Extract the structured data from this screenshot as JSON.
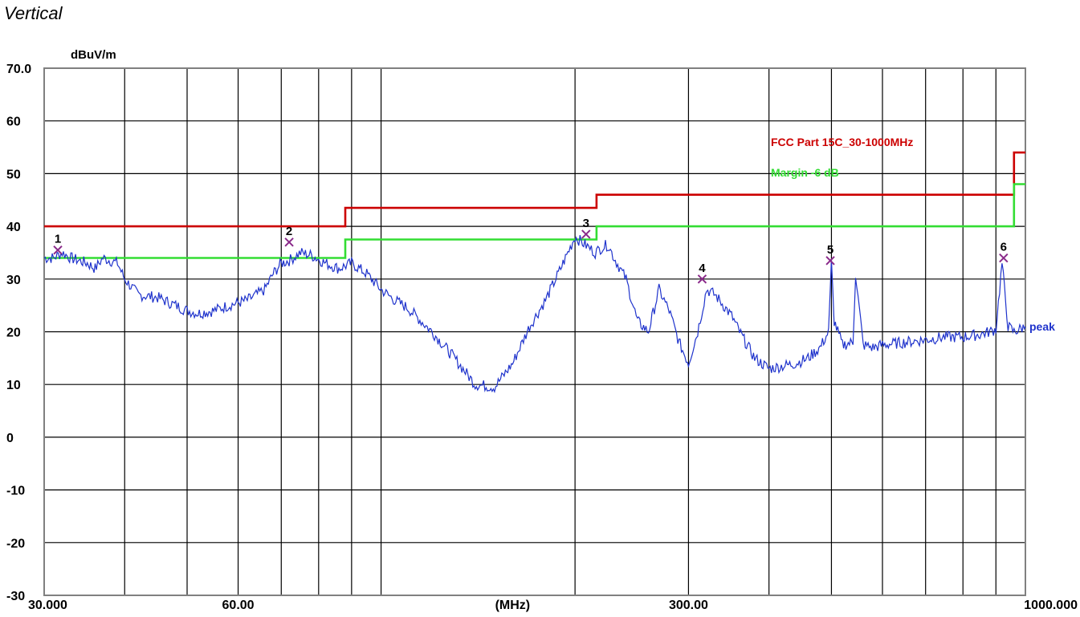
{
  "title": "Vertical",
  "chart_data": {
    "type": "line",
    "y_unit": "dBuV/m",
    "x_unit": "(MHz)",
    "x_scale": "log",
    "xlim": [
      30,
      1000
    ],
    "ylim": [
      -30,
      70
    ],
    "y_ticks": [
      "70.0",
      "60",
      "50",
      "40",
      "30",
      "20",
      "10",
      "0",
      "-10",
      "-20",
      "-30"
    ],
    "x_ticks": [
      "30.000",
      "60.00",
      "(MHz)",
      "300.00",
      "1000.000"
    ],
    "grid": true,
    "series": [
      {
        "name": "FCC Part 15C_30-1000MHz",
        "color": "#cc0000",
        "x": [
          30,
          88,
          88,
          216,
          216,
          960,
          960,
          1000
        ],
        "y": [
          40,
          40,
          43.5,
          43.5,
          46,
          46,
          54,
          54
        ]
      },
      {
        "name": "Margin -6 dB",
        "color": "#33dd33",
        "x": [
          30,
          88,
          88,
          216,
          216,
          960,
          960,
          1000
        ],
        "y": [
          34,
          34,
          37.5,
          37.5,
          40,
          40,
          48,
          48
        ]
      },
      {
        "name": "peak",
        "color": "#1f33cc",
        "x": [
          30,
          31,
          32,
          33,
          35,
          36,
          37,
          39,
          40,
          42,
          45,
          48,
          50,
          52,
          55,
          58,
          60,
          62,
          64,
          66,
          68,
          70,
          72,
          75,
          78,
          82,
          86,
          90,
          95,
          100,
          105,
          110,
          120,
          130,
          140,
          150,
          160,
          170,
          180,
          190,
          200,
          210,
          215,
          220,
          225,
          230,
          240,
          250,
          260,
          270,
          280,
          290,
          300,
          310,
          320,
          330,
          340,
          350,
          360,
          380,
          400,
          420,
          440,
          460,
          480,
          495,
          500,
          505,
          520,
          540,
          545,
          560,
          580,
          600,
          650,
          700,
          750,
          800,
          850,
          880,
          900,
          920,
          940,
          960,
          980,
          1000
        ],
        "y": [
          34,
          34,
          35,
          34,
          33,
          32,
          34,
          33,
          30,
          27,
          26.5,
          25,
          24,
          23.5,
          24,
          25,
          25.5,
          26,
          27,
          28,
          31,
          33,
          33.5,
          35,
          34.5,
          33,
          32,
          33,
          31,
          28,
          26,
          24.5,
          20,
          15,
          10,
          9.5,
          14,
          21,
          26,
          32,
          38,
          36,
          35,
          36,
          36.5,
          34,
          30,
          22,
          20,
          28,
          24,
          18,
          14,
          20,
          28,
          27,
          25,
          23,
          20,
          15,
          13,
          13.5,
          14,
          15,
          17,
          20,
          33,
          22,
          17.5,
          18,
          31,
          17.5,
          17,
          17.5,
          18,
          18.5,
          19,
          19,
          19.5,
          20,
          20.5,
          33,
          21,
          20,
          20.5,
          21
        ]
      }
    ],
    "markers": [
      {
        "label": "1",
        "x": 31.5,
        "y": 35.5
      },
      {
        "label": "2",
        "x": 72,
        "y": 37
      },
      {
        "label": "3",
        "x": 208,
        "y": 38.5
      },
      {
        "label": "4",
        "x": 315,
        "y": 30
      },
      {
        "label": "5",
        "x": 498,
        "y": 33.5
      },
      {
        "label": "6",
        "x": 925,
        "y": 34
      }
    ]
  }
}
